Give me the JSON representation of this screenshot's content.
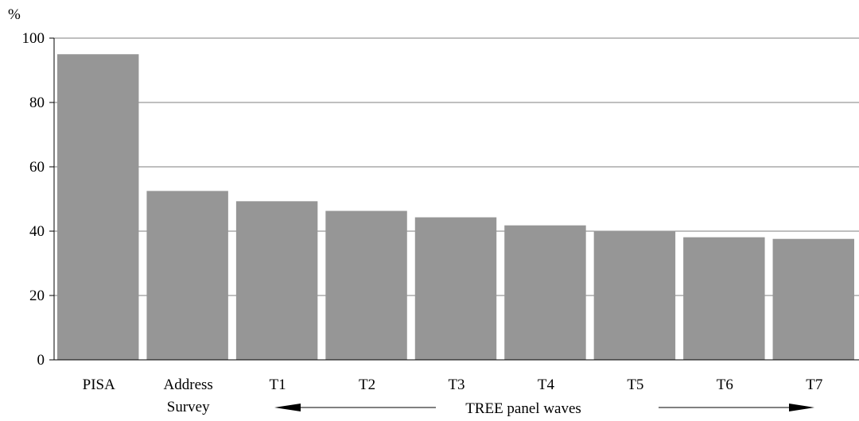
{
  "chart_data": {
    "type": "bar",
    "title": "",
    "ylabel": "%",
    "xlabel": "",
    "ylim": [
      0,
      100
    ],
    "yticks": [
      0,
      20,
      40,
      60,
      80,
      100
    ],
    "grid": true,
    "categories": [
      [
        "PISA"
      ],
      [
        "Address",
        "Survey"
      ],
      [
        "T1"
      ],
      [
        "T2"
      ],
      [
        "T3"
      ],
      [
        "T4"
      ],
      [
        "T5"
      ],
      [
        "T6"
      ],
      [
        "T7"
      ]
    ],
    "values": [
      95,
      52.5,
      49.3,
      46.3,
      44.3,
      41.8,
      40.1,
      38.1,
      37.6
    ],
    "bar_color": "#969696",
    "grid_color": "#7f7f7f",
    "annotation": {
      "text": "TREE panel waves",
      "arrow_left": "left-arrow",
      "arrow_right": "right-arrow"
    }
  }
}
